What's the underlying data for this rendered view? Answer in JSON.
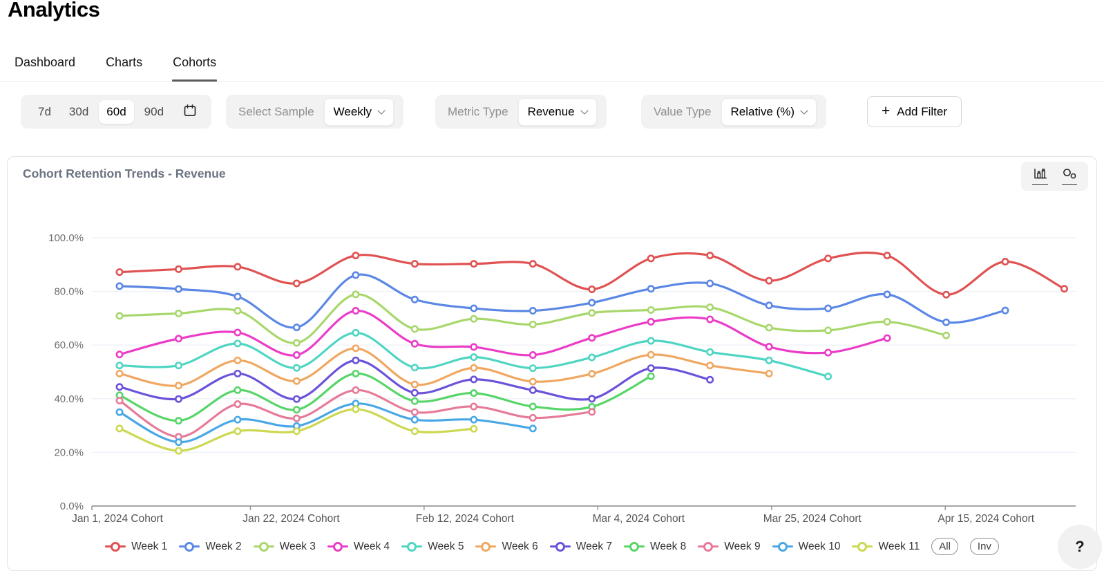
{
  "header": {
    "title": "Analytics"
  },
  "tabs": [
    {
      "id": "dashboard",
      "label": "Dashboard",
      "active": false
    },
    {
      "id": "charts",
      "label": "Charts",
      "active": false
    },
    {
      "id": "cohorts",
      "label": "Cohorts",
      "active": true
    }
  ],
  "filters": {
    "range_options": [
      "7d",
      "30d",
      "60d",
      "90d"
    ],
    "range_selected": "60d",
    "groups": [
      {
        "id": "select-sample",
        "label": "Select Sample",
        "value": "Weekly"
      },
      {
        "id": "metric-type",
        "label": "Metric Type",
        "value": "Revenue"
      },
      {
        "id": "value-type",
        "label": "Value Type",
        "value": "Relative (%)"
      }
    ],
    "add_filter_label": "Add Filter",
    "add_filter_plus": "+"
  },
  "panel": {
    "title": "Cohort Retention Trends - Revenue",
    "help_label": "?"
  },
  "legend_buttons": [
    {
      "id": "all",
      "label": "All"
    },
    {
      "id": "inv",
      "label": "Inv"
    }
  ],
  "chart_data": {
    "type": "line",
    "title": "Cohort Retention Trends - Revenue",
    "xlabel": "",
    "ylabel": "",
    "ylim": [
      0,
      100
    ],
    "grid": true,
    "legend_position": "bottom",
    "y_tick_labels": [
      "0.0%",
      "20.0%",
      "40.0%",
      "60.0%",
      "80.0%",
      "100.0%"
    ],
    "x_tick_labels": [
      "Jan 1, 2024 Cohort",
      "Jan 22, 2024 Cohort",
      "Feb 12, 2024 Cohort",
      "Mar 4, 2024 Cohort",
      "Mar 25, 2024 Cohort",
      "Apr 15, 2024 Cohort"
    ],
    "x_tick_cohort_indices": [
      0,
      3,
      6,
      9,
      12,
      15
    ],
    "cohort_count": 17,
    "series": [
      {
        "name": "Week 1",
        "color": "#e05252",
        "values": [
          87.2,
          88.3,
          89.2,
          83.0,
          93.4,
          90.3,
          90.3,
          90.3,
          80.8,
          92.3,
          93.4,
          84.0,
          92.3,
          93.4,
          78.8,
          91.1,
          81.0
        ]
      },
      {
        "name": "Week 2",
        "color": "#5b87e5",
        "values": [
          82.0,
          80.9,
          78.1,
          66.6,
          86.1,
          77.0,
          73.7,
          72.8,
          75.8,
          81.0,
          83.0,
          74.8,
          73.7,
          78.9,
          68.5,
          72.9
        ]
      },
      {
        "name": "Week 3",
        "color": "#a8d76c",
        "values": [
          70.9,
          71.8,
          72.8,
          60.8,
          78.9,
          66.0,
          69.8,
          67.7,
          72.0,
          73.1,
          74.1,
          66.5,
          65.5,
          68.7,
          63.6
        ]
      },
      {
        "name": "Week 4",
        "color": "#eb3cc7",
        "values": [
          56.5,
          62.4,
          64.7,
          56.3,
          72.8,
          60.5,
          59.3,
          56.3,
          62.7,
          68.7,
          69.6,
          59.4,
          57.2,
          62.6
        ]
      },
      {
        "name": "Week 5",
        "color": "#4fd5c3",
        "values": [
          52.4,
          52.4,
          60.6,
          51.5,
          64.6,
          51.6,
          55.5,
          51.4,
          55.4,
          61.6,
          57.4,
          54.3,
          48.3
        ]
      },
      {
        "name": "Week 6",
        "color": "#f0a761",
        "values": [
          49.4,
          44.9,
          54.3,
          46.6,
          58.8,
          45.3,
          51.5,
          46.4,
          49.3,
          56.4,
          52.4,
          49.4
        ]
      },
      {
        "name": "Week 7",
        "color": "#6c52da",
        "values": [
          44.4,
          39.9,
          49.4,
          39.9,
          54.3,
          42.2,
          47.2,
          43.2,
          40.0,
          51.4,
          47.1
        ]
      },
      {
        "name": "Week 8",
        "color": "#57d569",
        "values": [
          41.3,
          31.8,
          43.2,
          35.9,
          49.4,
          39.1,
          42.1,
          37.1,
          37.0,
          48.4
        ]
      },
      {
        "name": "Week 9",
        "color": "#e67b98",
        "values": [
          39.3,
          25.8,
          38.0,
          32.7,
          43.2,
          35.0,
          37.1,
          32.9,
          35.1
        ]
      },
      {
        "name": "Week 10",
        "color": "#49a7e6",
        "values": [
          35.0,
          23.8,
          32.2,
          29.8,
          38.2,
          32.2,
          32.2,
          28.9
        ]
      },
      {
        "name": "Week 11",
        "color": "#ccd851",
        "values": [
          28.9,
          20.6,
          27.9,
          27.9,
          36.1,
          27.9,
          28.8
        ]
      }
    ]
  }
}
